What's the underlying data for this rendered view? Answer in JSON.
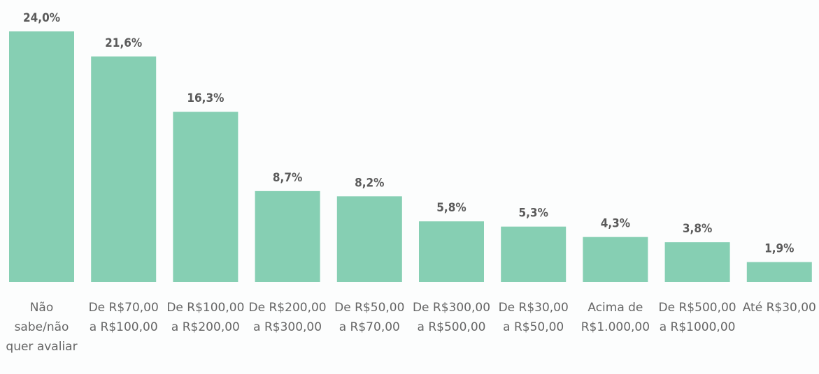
{
  "chart_data": {
    "type": "bar",
    "categories": [
      "Não sabe/não quer avaliar",
      "De R$70,00 a R$100,00",
      "De R$100,00 a R$200,00",
      "De R$200,00 a R$300,00",
      "De R$50,00 a R$70,00",
      "De R$300,00 a R$500,00",
      "De R$30,00 a R$50,00",
      "Acima de R$1.000,00",
      "De R$500,00 a R$1000,00",
      "Até R$30,00"
    ],
    "values": [
      24.0,
      21.6,
      16.3,
      8.7,
      8.2,
      5.8,
      5.3,
      4.3,
      3.8,
      1.9
    ],
    "value_labels": [
      "24,0%",
      "21,6%",
      "16,3%",
      "8,7%",
      "8,2%",
      "5,8%",
      "5,3%",
      "4,3%",
      "3,8%",
      "1,9%"
    ],
    "color": "#86cfb3"
  }
}
